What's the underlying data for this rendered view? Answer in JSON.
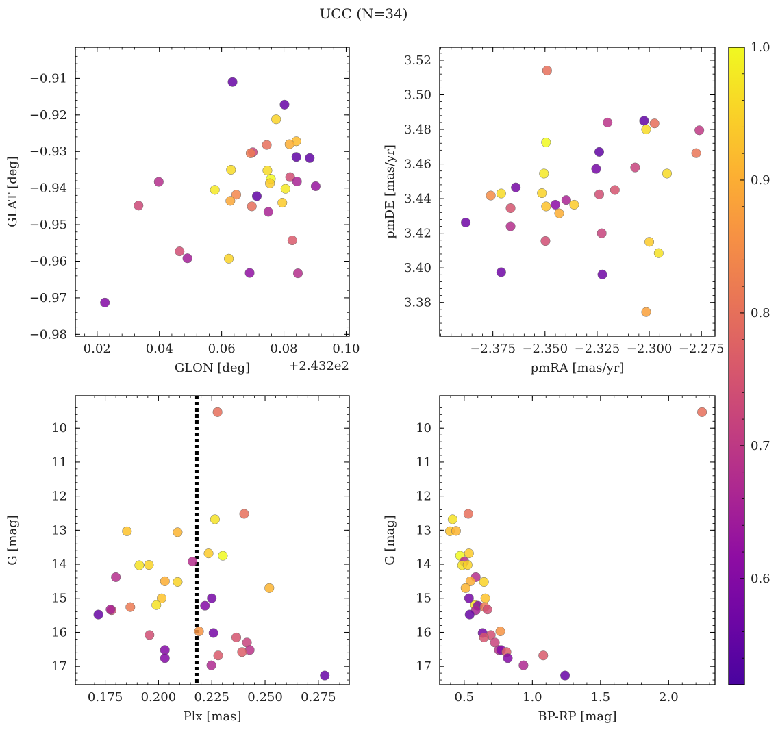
{
  "figure": {
    "title": "UCC (N=34)"
  },
  "colorbar": {
    "min": 0.52,
    "max": 1.0,
    "ticks": [
      0.6,
      0.7,
      0.8,
      0.9,
      1.0
    ],
    "tick_labels": [
      "0.6",
      "0.7",
      "0.8",
      "0.9",
      "1.0"
    ],
    "colormap": "plasma"
  },
  "chart_data": [
    {
      "type": "scatter",
      "title": "",
      "xlabel": "GLON [deg]",
      "ylabel": "GLAT [deg]",
      "x_offset_label": "+2.432e2",
      "xlim": [
        0.013,
        0.101
      ],
      "ylim": [
        -0.9805,
        -0.9015
      ],
      "xticks": [
        0.02,
        0.04,
        0.06,
        0.08,
        0.1
      ],
      "xtick_labels": [
        "0.02",
        "0.04",
        "0.06",
        "0.08",
        "0.10"
      ],
      "yticks": [
        -0.91,
        -0.92,
        -0.93,
        -0.94,
        -0.95,
        -0.96,
        -0.97,
        -0.98
      ],
      "ytick_labels": [
        "−0.91",
        "−0.92",
        "−0.93",
        "−0.94",
        "−0.95",
        "−0.96",
        "−0.97",
        "−0.98"
      ],
      "points": [
        {
          "x": 0.0635,
          "y": -0.911,
          "c": 0.56
        },
        {
          "x": 0.0802,
          "y": -0.9172,
          "c": 0.56
        },
        {
          "x": 0.0775,
          "y": -0.9212,
          "c": 0.95
        },
        {
          "x": 0.084,
          "y": -0.9272,
          "c": 0.92
        },
        {
          "x": 0.0818,
          "y": -0.928,
          "c": 0.9
        },
        {
          "x": 0.0745,
          "y": -0.9282,
          "c": 0.8
        },
        {
          "x": 0.07,
          "y": -0.9302,
          "c": 0.72
        },
        {
          "x": 0.0693,
          "y": -0.9305,
          "c": 0.82
        },
        {
          "x": 0.084,
          "y": -0.9315,
          "c": 0.55
        },
        {
          "x": 0.0883,
          "y": -0.9318,
          "c": 0.55
        },
        {
          "x": 0.063,
          "y": -0.935,
          "c": 0.96
        },
        {
          "x": 0.0747,
          "y": -0.9352,
          "c": 0.96
        },
        {
          "x": 0.082,
          "y": -0.937,
          "c": 0.74
        },
        {
          "x": 0.0758,
          "y": -0.9375,
          "c": 1.0
        },
        {
          "x": 0.0755,
          "y": -0.9387,
          "c": 0.94
        },
        {
          "x": 0.0842,
          "y": -0.9382,
          "c": 0.66
        },
        {
          "x": 0.0398,
          "y": -0.9383,
          "c": 0.68
        },
        {
          "x": 0.0902,
          "y": -0.9395,
          "c": 0.63
        },
        {
          "x": 0.0805,
          "y": -0.9402,
          "c": 0.98
        },
        {
          "x": 0.0578,
          "y": -0.9405,
          "c": 0.98
        },
        {
          "x": 0.0647,
          "y": -0.9418,
          "c": 0.84
        },
        {
          "x": 0.0713,
          "y": -0.9422,
          "c": 0.55
        },
        {
          "x": 0.0628,
          "y": -0.9435,
          "c": 0.89
        },
        {
          "x": 0.0795,
          "y": -0.944,
          "c": 0.94
        },
        {
          "x": 0.0333,
          "y": -0.9448,
          "c": 0.73
        },
        {
          "x": 0.0697,
          "y": -0.945,
          "c": 0.8
        },
        {
          "x": 0.075,
          "y": -0.9465,
          "c": 0.66
        },
        {
          "x": 0.0827,
          "y": -0.9543,
          "c": 0.76
        },
        {
          "x": 0.0465,
          "y": -0.9573,
          "c": 0.74
        },
        {
          "x": 0.049,
          "y": -0.9592,
          "c": 0.65
        },
        {
          "x": 0.0623,
          "y": -0.9593,
          "c": 0.95
        },
        {
          "x": 0.069,
          "y": -0.9632,
          "c": 0.62
        },
        {
          "x": 0.0845,
          "y": -0.9633,
          "c": 0.68
        },
        {
          "x": 0.0225,
          "y": -0.9713,
          "c": 0.6
        }
      ]
    },
    {
      "type": "scatter",
      "title": "",
      "xlabel": "pmRA [mas/yr]",
      "ylabel": "pmDE [mas/yr]",
      "xlim": [
        -2.4005,
        -2.2685
      ],
      "ylim": [
        3.3605,
        3.5275
      ],
      "xticks": [
        -2.375,
        -2.35,
        -2.325,
        -2.3,
        -2.275
      ],
      "xtick_labels": [
        "−2.375",
        "−2.350",
        "−2.325",
        "−2.300",
        "−2.275"
      ],
      "yticks": [
        3.38,
        3.4,
        3.42,
        3.44,
        3.46,
        3.48,
        3.5,
        3.52
      ],
      "ytick_labels": [
        "3.38",
        "3.40",
        "3.42",
        "3.44",
        "3.46",
        "3.48",
        "3.50",
        "3.52"
      ],
      "points": [
        {
          "x": -2.349,
          "y": 3.514,
          "c": 0.8
        },
        {
          "x": -2.3025,
          "y": 3.485,
          "c": 0.55
        },
        {
          "x": -2.3015,
          "y": 3.48,
          "c": 0.96
        },
        {
          "x": -2.2975,
          "y": 3.4835,
          "c": 0.8
        },
        {
          "x": -2.32,
          "y": 3.484,
          "c": 0.69
        },
        {
          "x": -2.276,
          "y": 3.4795,
          "c": 0.7
        },
        {
          "x": -2.3495,
          "y": 3.4725,
          "c": 1.0
        },
        {
          "x": -2.324,
          "y": 3.467,
          "c": 0.55
        },
        {
          "x": -2.2775,
          "y": 3.4663,
          "c": 0.81
        },
        {
          "x": -2.3068,
          "y": 3.458,
          "c": 0.72
        },
        {
          "x": -2.3255,
          "y": 3.4572,
          "c": 0.58
        },
        {
          "x": -2.3505,
          "y": 3.4545,
          "c": 0.98
        },
        {
          "x": -2.2915,
          "y": 3.4545,
          "c": 0.96
        },
        {
          "x": -2.364,
          "y": 3.4465,
          "c": 0.58
        },
        {
          "x": -2.3165,
          "y": 3.445,
          "c": 0.75
        },
        {
          "x": -2.3515,
          "y": 3.4432,
          "c": 0.95
        },
        {
          "x": -2.371,
          "y": 3.443,
          "c": 0.96
        },
        {
          "x": -2.324,
          "y": 3.4425,
          "c": 0.74
        },
        {
          "x": -2.376,
          "y": 3.4418,
          "c": 0.85
        },
        {
          "x": -2.3398,
          "y": 3.4392,
          "c": 0.66
        },
        {
          "x": -2.345,
          "y": 3.4365,
          "c": 0.61
        },
        {
          "x": -2.336,
          "y": 3.4365,
          "c": 0.94
        },
        {
          "x": -2.3495,
          "y": 3.4355,
          "c": 0.93
        },
        {
          "x": -2.3665,
          "y": 3.4345,
          "c": 0.75
        },
        {
          "x": -2.3432,
          "y": 3.4315,
          "c": 0.9
        },
        {
          "x": -2.388,
          "y": 3.4262,
          "c": 0.57
        },
        {
          "x": -2.3665,
          "y": 3.424,
          "c": 0.68
        },
        {
          "x": -2.3228,
          "y": 3.42,
          "c": 0.72
        },
        {
          "x": -2.3498,
          "y": 3.4155,
          "c": 0.74
        },
        {
          "x": -2.3,
          "y": 3.415,
          "c": 0.94
        },
        {
          "x": -2.2955,
          "y": 3.4085,
          "c": 0.97
        },
        {
          "x": -2.371,
          "y": 3.3975,
          "c": 0.57
        },
        {
          "x": -2.3225,
          "y": 3.3962,
          "c": 0.57
        },
        {
          "x": -2.3015,
          "y": 3.3745,
          "c": 0.88
        }
      ]
    },
    {
      "type": "scatter",
      "title": "",
      "xlabel": "Plx [mas]",
      "ylabel": "G [mag]",
      "xlim": [
        0.161,
        0.2895
      ],
      "ylim": [
        17.54,
        9.05
      ],
      "xticks": [
        0.175,
        0.2,
        0.225,
        0.25,
        0.275
      ],
      "xtick_labels": [
        "0.175",
        "0.200",
        "0.225",
        "0.250",
        "0.275"
      ],
      "yticks": [
        10,
        11,
        12,
        13,
        14,
        15,
        16,
        17
      ],
      "ytick_labels": [
        "10",
        "11",
        "12",
        "13",
        "14",
        "15",
        "16",
        "17"
      ],
      "vline": 0.218,
      "points": [
        {
          "x": 0.2277,
          "y": 9.53,
          "c": 0.8
        },
        {
          "x": 0.2402,
          "y": 12.52,
          "c": 0.8
        },
        {
          "x": 0.2265,
          "y": 12.68,
          "c": 0.97
        },
        {
          "x": 0.1852,
          "y": 13.03,
          "c": 0.93
        },
        {
          "x": 0.209,
          "y": 13.06,
          "c": 0.91
        },
        {
          "x": 0.2235,
          "y": 13.68,
          "c": 0.94
        },
        {
          "x": 0.2302,
          "y": 13.75,
          "c": 1.0
        },
        {
          "x": 0.216,
          "y": 13.92,
          "c": 0.68
        },
        {
          "x": 0.191,
          "y": 14.03,
          "c": 0.97
        },
        {
          "x": 0.1955,
          "y": 14.02,
          "c": 0.95
        },
        {
          "x": 0.18,
          "y": 14.38,
          "c": 0.68
        },
        {
          "x": 0.203,
          "y": 14.5,
          "c": 0.9
        },
        {
          "x": 0.209,
          "y": 14.52,
          "c": 0.95
        },
        {
          "x": 0.252,
          "y": 14.7,
          "c": 0.91
        },
        {
          "x": 0.2015,
          "y": 15.0,
          "c": 0.93
        },
        {
          "x": 0.225,
          "y": 15.0,
          "c": 0.58
        },
        {
          "x": 0.199,
          "y": 15.2,
          "c": 0.97
        },
        {
          "x": 0.2218,
          "y": 15.22,
          "c": 0.6
        },
        {
          "x": 0.1868,
          "y": 15.26,
          "c": 0.82
        },
        {
          "x": 0.178,
          "y": 15.35,
          "c": 0.74
        },
        {
          "x": 0.1775,
          "y": 15.33,
          "c": 0.66
        },
        {
          "x": 0.1718,
          "y": 15.48,
          "c": 0.56
        },
        {
          "x": 0.219,
          "y": 15.97,
          "c": 0.86
        },
        {
          "x": 0.2258,
          "y": 16.02,
          "c": 0.58
        },
        {
          "x": 0.1958,
          "y": 16.08,
          "c": 0.74
        },
        {
          "x": 0.2365,
          "y": 16.15,
          "c": 0.75
        },
        {
          "x": 0.2415,
          "y": 16.3,
          "c": 0.72
        },
        {
          "x": 0.2428,
          "y": 16.52,
          "c": 0.69
        },
        {
          "x": 0.203,
          "y": 16.52,
          "c": 0.6
        },
        {
          "x": 0.2392,
          "y": 16.58,
          "c": 0.77
        },
        {
          "x": 0.228,
          "y": 16.68,
          "c": 0.76
        },
        {
          "x": 0.203,
          "y": 16.76,
          "c": 0.6
        },
        {
          "x": 0.2248,
          "y": 16.97,
          "c": 0.67
        },
        {
          "x": 0.278,
          "y": 17.27,
          "c": 0.56
        }
      ]
    },
    {
      "type": "scatter",
      "title": "",
      "xlabel": "BP-RP [mag]",
      "ylabel": "G [mag]",
      "xlim": [
        0.32,
        2.34
      ],
      "ylim": [
        17.54,
        9.05
      ],
      "xticks": [
        0.5,
        1.0,
        1.5,
        2.0
      ],
      "xtick_labels": [
        "0.5",
        "1.0",
        "1.5",
        "2.0"
      ],
      "yticks": [
        10,
        11,
        12,
        13,
        14,
        15,
        16,
        17
      ],
      "ytick_labels": [
        "10",
        "11",
        "12",
        "13",
        "14",
        "15",
        "16",
        "17"
      ],
      "points": [
        {
          "x": 2.245,
          "y": 9.53,
          "c": 0.8
        },
        {
          "x": 0.53,
          "y": 12.52,
          "c": 0.8
        },
        {
          "x": 0.415,
          "y": 12.68,
          "c": 0.97
        },
        {
          "x": 0.395,
          "y": 13.03,
          "c": 0.93
        },
        {
          "x": 0.44,
          "y": 13.02,
          "c": 0.91
        },
        {
          "x": 0.535,
          "y": 13.68,
          "c": 0.94
        },
        {
          "x": 0.47,
          "y": 13.75,
          "c": 1.0
        },
        {
          "x": 0.5,
          "y": 13.92,
          "c": 0.68
        },
        {
          "x": 0.485,
          "y": 14.03,
          "c": 0.97
        },
        {
          "x": 0.525,
          "y": 14.02,
          "c": 0.95
        },
        {
          "x": 0.585,
          "y": 14.38,
          "c": 0.68
        },
        {
          "x": 0.545,
          "y": 14.5,
          "c": 0.9
        },
        {
          "x": 0.645,
          "y": 14.52,
          "c": 0.95
        },
        {
          "x": 0.51,
          "y": 14.7,
          "c": 0.91
        },
        {
          "x": 0.655,
          "y": 15.0,
          "c": 0.93
        },
        {
          "x": 0.535,
          "y": 15.0,
          "c": 0.58
        },
        {
          "x": 0.58,
          "y": 15.2,
          "c": 0.97
        },
        {
          "x": 0.6,
          "y": 15.22,
          "c": 0.6
        },
        {
          "x": 0.65,
          "y": 15.26,
          "c": 0.82
        },
        {
          "x": 0.67,
          "y": 15.33,
          "c": 0.74
        },
        {
          "x": 0.585,
          "y": 15.35,
          "c": 0.66
        },
        {
          "x": 0.54,
          "y": 15.48,
          "c": 0.56
        },
        {
          "x": 0.765,
          "y": 15.97,
          "c": 0.86
        },
        {
          "x": 0.635,
          "y": 16.02,
          "c": 0.58
        },
        {
          "x": 0.695,
          "y": 16.08,
          "c": 0.74
        },
        {
          "x": 0.645,
          "y": 16.15,
          "c": 0.75
        },
        {
          "x": 0.725,
          "y": 16.3,
          "c": 0.72
        },
        {
          "x": 0.755,
          "y": 16.52,
          "c": 0.69
        },
        {
          "x": 0.77,
          "y": 16.52,
          "c": 0.6
        },
        {
          "x": 0.81,
          "y": 16.58,
          "c": 0.77
        },
        {
          "x": 1.08,
          "y": 16.68,
          "c": 0.76
        },
        {
          "x": 0.82,
          "y": 16.76,
          "c": 0.6
        },
        {
          "x": 0.935,
          "y": 16.97,
          "c": 0.67
        },
        {
          "x": 1.24,
          "y": 17.27,
          "c": 0.56
        }
      ]
    }
  ]
}
